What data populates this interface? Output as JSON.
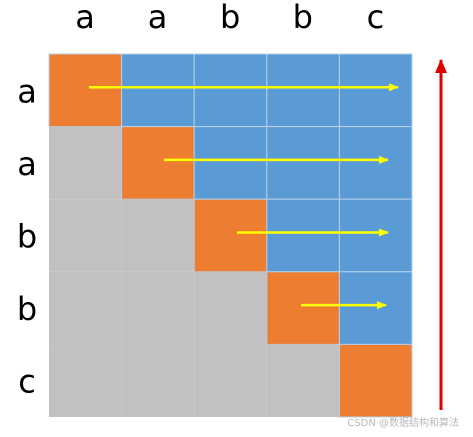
{
  "diagram": {
    "column_labels": [
      "a",
      "a",
      "b",
      "b",
      "c"
    ],
    "row_labels": [
      "a",
      "a",
      "b",
      "b",
      "c"
    ],
    "colors": {
      "lower": "#c2c0c0",
      "diagonal": "#ed7d31",
      "upper": "#5b9bd5",
      "grid_line": "#b8cfe6",
      "row_arrow": "#ffff00",
      "side_arrow": "#e00000"
    }
  },
  "watermark": "CSDN @数据结构和算法"
}
